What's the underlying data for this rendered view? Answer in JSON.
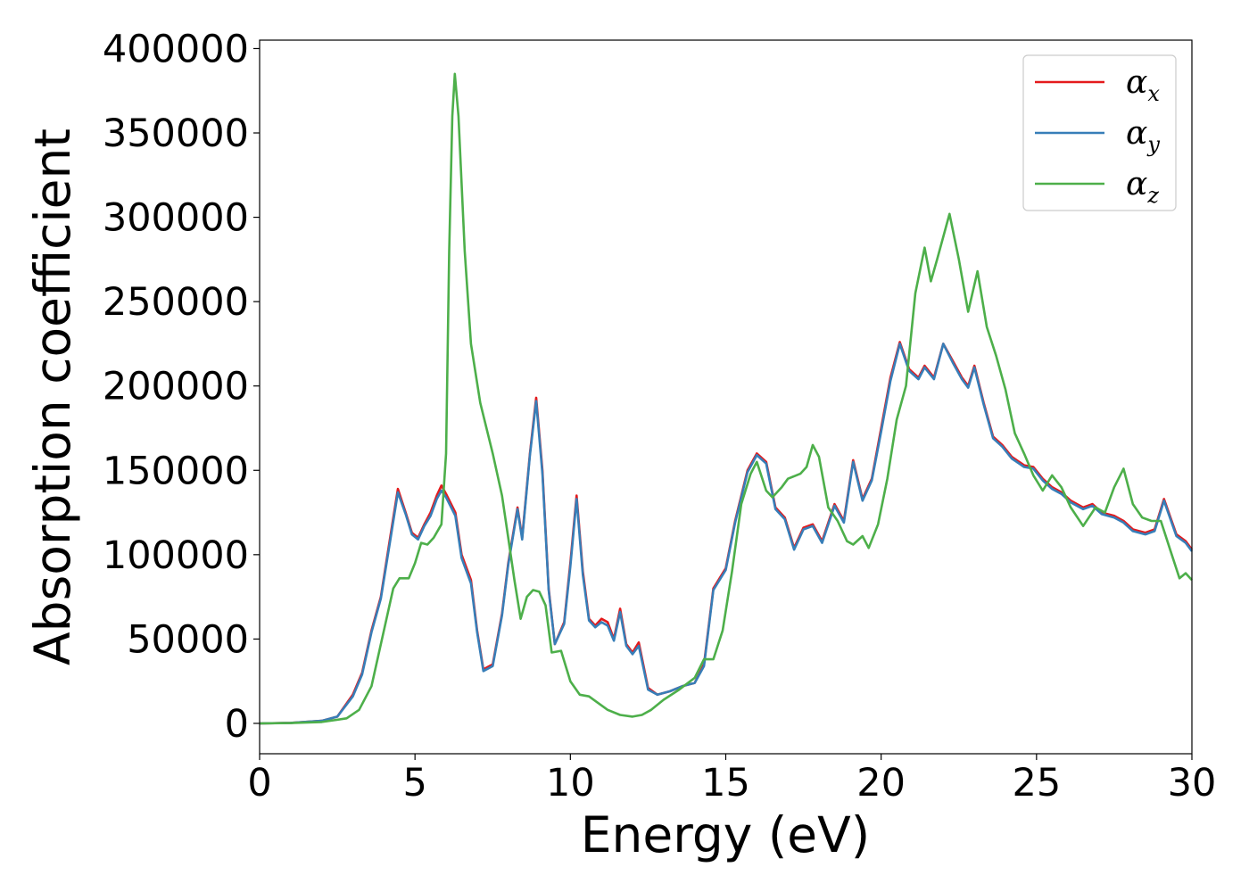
{
  "chart_data": {
    "type": "line",
    "xlabel": "Energy (eV)",
    "ylabel": "Absorption coefficient",
    "xlim": [
      0,
      30
    ],
    "ylim": [
      -18000,
      405000
    ],
    "xticks": [
      0,
      5,
      10,
      15,
      20,
      25,
      30
    ],
    "yticks": [
      0,
      50000,
      100000,
      150000,
      200000,
      250000,
      300000,
      350000,
      400000
    ],
    "legend": {
      "placement": "top-right",
      "entries": [
        {
          "symbol": "α",
          "subscript": "x"
        },
        {
          "symbol": "α",
          "subscript": "y"
        },
        {
          "symbol": "α",
          "subscript": "z"
        }
      ]
    },
    "grid": false,
    "series": [
      {
        "name": "αx",
        "color": "#e41a1c",
        "points": [
          [
            0,
            0
          ],
          [
            1,
            300
          ],
          [
            2,
            1500
          ],
          [
            2.5,
            4000
          ],
          [
            3,
            17000
          ],
          [
            3.3,
            30000
          ],
          [
            3.6,
            55000
          ],
          [
            3.9,
            75000
          ],
          [
            4.2,
            110000
          ],
          [
            4.45,
            139000
          ],
          [
            4.7,
            125000
          ],
          [
            4.9,
            113000
          ],
          [
            5.1,
            110000
          ],
          [
            5.3,
            118000
          ],
          [
            5.5,
            125000
          ],
          [
            5.7,
            135000
          ],
          [
            5.85,
            141000
          ],
          [
            6.0,
            136000
          ],
          [
            6.3,
            125000
          ],
          [
            6.5,
            100000
          ],
          [
            6.8,
            85000
          ],
          [
            7.0,
            55000
          ],
          [
            7.2,
            32000
          ],
          [
            7.5,
            35000
          ],
          [
            7.8,
            65000
          ],
          [
            8.0,
            95000
          ],
          [
            8.3,
            128000
          ],
          [
            8.45,
            110000
          ],
          [
            8.7,
            160000
          ],
          [
            8.9,
            193000
          ],
          [
            9.1,
            150000
          ],
          [
            9.3,
            80000
          ],
          [
            9.5,
            47000
          ],
          [
            9.8,
            60000
          ],
          [
            10.0,
            95000
          ],
          [
            10.2,
            135000
          ],
          [
            10.4,
            90000
          ],
          [
            10.6,
            62000
          ],
          [
            10.8,
            58000
          ],
          [
            11.0,
            62000
          ],
          [
            11.2,
            60000
          ],
          [
            11.4,
            50000
          ],
          [
            11.6,
            68000
          ],
          [
            11.8,
            47000
          ],
          [
            12.0,
            42000
          ],
          [
            12.2,
            48000
          ],
          [
            12.5,
            21000
          ],
          [
            12.8,
            17000
          ],
          [
            13.2,
            19000
          ],
          [
            13.6,
            22000
          ],
          [
            14.0,
            24000
          ],
          [
            14.3,
            35000
          ],
          [
            14.6,
            80000
          ],
          [
            15.0,
            92000
          ],
          [
            15.3,
            120000
          ],
          [
            15.7,
            150000
          ],
          [
            16.0,
            160000
          ],
          [
            16.3,
            155000
          ],
          [
            16.6,
            128000
          ],
          [
            16.9,
            122000
          ],
          [
            17.2,
            104000
          ],
          [
            17.5,
            116000
          ],
          [
            17.8,
            118000
          ],
          [
            18.1,
            108000
          ],
          [
            18.5,
            130000
          ],
          [
            18.8,
            120000
          ],
          [
            19.1,
            156000
          ],
          [
            19.4,
            133000
          ],
          [
            19.7,
            145000
          ],
          [
            20.0,
            175000
          ],
          [
            20.3,
            205000
          ],
          [
            20.6,
            226000
          ],
          [
            20.9,
            210000
          ],
          [
            21.2,
            205000
          ],
          [
            21.4,
            212000
          ],
          [
            21.7,
            205000
          ],
          [
            22.0,
            225000
          ],
          [
            22.3,
            215000
          ],
          [
            22.6,
            205000
          ],
          [
            22.8,
            200000
          ],
          [
            23.0,
            212000
          ],
          [
            23.3,
            190000
          ],
          [
            23.6,
            170000
          ],
          [
            23.9,
            165000
          ],
          [
            24.2,
            158000
          ],
          [
            24.6,
            153000
          ],
          [
            24.9,
            152000
          ],
          [
            25.2,
            145000
          ],
          [
            25.5,
            140000
          ],
          [
            25.8,
            137000
          ],
          [
            26.1,
            132000
          ],
          [
            26.5,
            128000
          ],
          [
            26.8,
            130000
          ],
          [
            27.1,
            125000
          ],
          [
            27.5,
            123000
          ],
          [
            27.8,
            120000
          ],
          [
            28.1,
            115000
          ],
          [
            28.5,
            113000
          ],
          [
            28.8,
            115000
          ],
          [
            29.1,
            133000
          ],
          [
            29.5,
            112000
          ],
          [
            29.8,
            108000
          ],
          [
            30,
            103000
          ]
        ]
      },
      {
        "name": "αy",
        "color": "#377eb8",
        "points": [
          [
            0,
            0
          ],
          [
            1,
            300
          ],
          [
            2,
            1500
          ],
          [
            2.5,
            4000
          ],
          [
            3,
            16000
          ],
          [
            3.3,
            29000
          ],
          [
            3.6,
            54000
          ],
          [
            3.9,
            74000
          ],
          [
            4.2,
            108000
          ],
          [
            4.45,
            137000
          ],
          [
            4.7,
            124000
          ],
          [
            4.9,
            112000
          ],
          [
            5.1,
            109000
          ],
          [
            5.3,
            117000
          ],
          [
            5.5,
            123000
          ],
          [
            5.7,
            133000
          ],
          [
            5.85,
            138000
          ],
          [
            6.0,
            134000
          ],
          [
            6.3,
            123000
          ],
          [
            6.5,
            98000
          ],
          [
            6.8,
            83000
          ],
          [
            7.0,
            54000
          ],
          [
            7.2,
            31000
          ],
          [
            7.5,
            34000
          ],
          [
            7.8,
            64000
          ],
          [
            8.0,
            94000
          ],
          [
            8.3,
            127000
          ],
          [
            8.45,
            109000
          ],
          [
            8.7,
            159000
          ],
          [
            8.9,
            191000
          ],
          [
            9.1,
            148000
          ],
          [
            9.3,
            79000
          ],
          [
            9.5,
            47000
          ],
          [
            9.8,
            59000
          ],
          [
            10.0,
            93000
          ],
          [
            10.2,
            133000
          ],
          [
            10.4,
            88000
          ],
          [
            10.6,
            61000
          ],
          [
            10.8,
            57000
          ],
          [
            11.0,
            60000
          ],
          [
            11.2,
            58000
          ],
          [
            11.4,
            49000
          ],
          [
            11.6,
            66000
          ],
          [
            11.8,
            46000
          ],
          [
            12.0,
            41000
          ],
          [
            12.2,
            46000
          ],
          [
            12.5,
            20000
          ],
          [
            12.8,
            17000
          ],
          [
            13.2,
            19000
          ],
          [
            13.6,
            22000
          ],
          [
            14.0,
            24000
          ],
          [
            14.3,
            34000
          ],
          [
            14.6,
            79000
          ],
          [
            15.0,
            91000
          ],
          [
            15.3,
            119000
          ],
          [
            15.7,
            149000
          ],
          [
            16.0,
            159000
          ],
          [
            16.3,
            154000
          ],
          [
            16.6,
            127000
          ],
          [
            16.9,
            121000
          ],
          [
            17.2,
            103000
          ],
          [
            17.5,
            115000
          ],
          [
            17.8,
            117000
          ],
          [
            18.1,
            107000
          ],
          [
            18.5,
            129000
          ],
          [
            18.8,
            119000
          ],
          [
            19.1,
            155000
          ],
          [
            19.4,
            132000
          ],
          [
            19.7,
            144000
          ],
          [
            20.0,
            173000
          ],
          [
            20.3,
            203000
          ],
          [
            20.6,
            225000
          ],
          [
            20.9,
            209000
          ],
          [
            21.2,
            204000
          ],
          [
            21.4,
            211000
          ],
          [
            21.7,
            204000
          ],
          [
            22.0,
            225000
          ],
          [
            22.3,
            214000
          ],
          [
            22.6,
            204000
          ],
          [
            22.8,
            199000
          ],
          [
            23.0,
            211000
          ],
          [
            23.3,
            189000
          ],
          [
            23.6,
            169000
          ],
          [
            23.9,
            164000
          ],
          [
            24.2,
            157000
          ],
          [
            24.6,
            152000
          ],
          [
            24.9,
            151000
          ],
          [
            25.2,
            144000
          ],
          [
            25.5,
            139000
          ],
          [
            25.8,
            136000
          ],
          [
            26.1,
            131000
          ],
          [
            26.5,
            127000
          ],
          [
            26.8,
            129000
          ],
          [
            27.1,
            124000
          ],
          [
            27.5,
            122000
          ],
          [
            27.8,
            119000
          ],
          [
            28.1,
            114000
          ],
          [
            28.5,
            112000
          ],
          [
            28.8,
            114000
          ],
          [
            29.1,
            132000
          ],
          [
            29.5,
            111000
          ],
          [
            29.8,
            107000
          ],
          [
            30,
            102000
          ]
        ]
      },
      {
        "name": "αz",
        "color": "#4daf4a",
        "points": [
          [
            0,
            0
          ],
          [
            1,
            200
          ],
          [
            2,
            800
          ],
          [
            2.8,
            3000
          ],
          [
            3.2,
            8000
          ],
          [
            3.6,
            22000
          ],
          [
            4.0,
            55000
          ],
          [
            4.3,
            80000
          ],
          [
            4.5,
            86000
          ],
          [
            4.8,
            86000
          ],
          [
            5.0,
            95000
          ],
          [
            5.2,
            107000
          ],
          [
            5.4,
            106000
          ],
          [
            5.6,
            110000
          ],
          [
            5.85,
            118000
          ],
          [
            6.0,
            160000
          ],
          [
            6.1,
            280000
          ],
          [
            6.2,
            360000
          ],
          [
            6.28,
            385000
          ],
          [
            6.4,
            360000
          ],
          [
            6.6,
            280000
          ],
          [
            6.8,
            225000
          ],
          [
            7.1,
            190000
          ],
          [
            7.5,
            160000
          ],
          [
            7.8,
            135000
          ],
          [
            8.0,
            110000
          ],
          [
            8.2,
            85000
          ],
          [
            8.4,
            62000
          ],
          [
            8.6,
            75000
          ],
          [
            8.8,
            79000
          ],
          [
            9.0,
            78000
          ],
          [
            9.2,
            70000
          ],
          [
            9.4,
            42000
          ],
          [
            9.7,
            43000
          ],
          [
            10.0,
            25000
          ],
          [
            10.3,
            17000
          ],
          [
            10.6,
            16000
          ],
          [
            10.9,
            12000
          ],
          [
            11.2,
            8000
          ],
          [
            11.6,
            5000
          ],
          [
            12.0,
            4000
          ],
          [
            12.3,
            5000
          ],
          [
            12.6,
            8000
          ],
          [
            13.0,
            14000
          ],
          [
            13.5,
            20000
          ],
          [
            14.0,
            27000
          ],
          [
            14.3,
            38000
          ],
          [
            14.6,
            38000
          ],
          [
            14.9,
            55000
          ],
          [
            15.2,
            90000
          ],
          [
            15.5,
            130000
          ],
          [
            15.8,
            148000
          ],
          [
            16.0,
            155000
          ],
          [
            16.3,
            138000
          ],
          [
            16.5,
            134000
          ],
          [
            16.8,
            140000
          ],
          [
            17.0,
            145000
          ],
          [
            17.4,
            148000
          ],
          [
            17.6,
            152000
          ],
          [
            17.8,
            165000
          ],
          [
            18.0,
            158000
          ],
          [
            18.3,
            128000
          ],
          [
            18.6,
            120000
          ],
          [
            18.9,
            108000
          ],
          [
            19.1,
            106000
          ],
          [
            19.4,
            111000
          ],
          [
            19.6,
            104000
          ],
          [
            19.9,
            118000
          ],
          [
            20.2,
            145000
          ],
          [
            20.5,
            180000
          ],
          [
            20.8,
            200000
          ],
          [
            21.1,
            255000
          ],
          [
            21.4,
            282000
          ],
          [
            21.6,
            262000
          ],
          [
            21.8,
            275000
          ],
          [
            22.2,
            302000
          ],
          [
            22.5,
            275000
          ],
          [
            22.8,
            244000
          ],
          [
            23.1,
            268000
          ],
          [
            23.4,
            235000
          ],
          [
            23.7,
            218000
          ],
          [
            24.0,
            198000
          ],
          [
            24.3,
            172000
          ],
          [
            24.6,
            160000
          ],
          [
            24.9,
            147000
          ],
          [
            25.2,
            138000
          ],
          [
            25.5,
            147000
          ],
          [
            25.8,
            140000
          ],
          [
            26.1,
            128000
          ],
          [
            26.5,
            117000
          ],
          [
            26.9,
            128000
          ],
          [
            27.2,
            125000
          ],
          [
            27.5,
            140000
          ],
          [
            27.8,
            151000
          ],
          [
            28.1,
            130000
          ],
          [
            28.4,
            122000
          ],
          [
            28.7,
            120000
          ],
          [
            29.0,
            120000
          ],
          [
            29.3,
            103000
          ],
          [
            29.6,
            86000
          ],
          [
            29.8,
            89000
          ],
          [
            30,
            85000
          ]
        ]
      }
    ]
  }
}
